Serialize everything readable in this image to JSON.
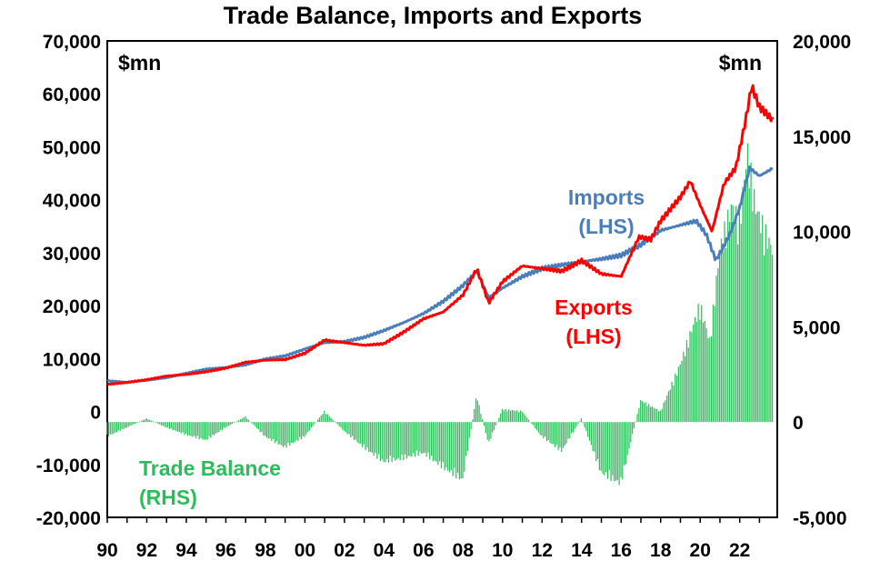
{
  "chart_data": {
    "type": "bar+line",
    "title": "Trade Balance, Imports and Exports",
    "left_unit": "$mn",
    "right_unit": "$mn",
    "x_tick_labels": [
      "90",
      "92",
      "94",
      "96",
      "98",
      "00",
      "02",
      "04",
      "06",
      "08",
      "10",
      "12",
      "14",
      "16",
      "18",
      "20",
      "22"
    ],
    "x_range": [
      1990,
      2023.9
    ],
    "left_axis": {
      "ylim": [
        -20000,
        70000
      ],
      "ticks": [
        -20000,
        -10000,
        0,
        10000,
        20000,
        30000,
        40000,
        50000,
        60000,
        70000
      ],
      "tick_labels": [
        "-20,000",
        "-10,000",
        "0",
        "10,000",
        "20,000",
        "30,000",
        "40,000",
        "50,000",
        "60,000",
        "70,000"
      ]
    },
    "right_axis": {
      "ylim": [
        -5000,
        20000
      ],
      "ticks": [
        -5000,
        0,
        5000,
        10000,
        15000,
        20000
      ],
      "tick_labels": [
        "-5,000",
        "0",
        "5,000",
        "10,000",
        "15,000",
        "20,000"
      ]
    },
    "grid": false,
    "colors": {
      "imports": "#4a7ebb",
      "exports": "#ff0000",
      "balance": "#2bbd5a"
    },
    "series": [
      {
        "name": "Imports",
        "label_lines": [
          "Imports",
          "(LHS)"
        ],
        "axis": "left",
        "kind": "line",
        "points": [
          [
            1990,
            5800
          ],
          [
            1991,
            5500
          ],
          [
            1992,
            5900
          ],
          [
            1993,
            6400
          ],
          [
            1994,
            7200
          ],
          [
            1995,
            8000
          ],
          [
            1996,
            8300
          ],
          [
            1997,
            8800
          ],
          [
            1998,
            9900
          ],
          [
            1999,
            10500
          ],
          [
            2000,
            11800
          ],
          [
            2001,
            13000
          ],
          [
            2002,
            13200
          ],
          [
            2003,
            14000
          ],
          [
            2004,
            15300
          ],
          [
            2005,
            16800
          ],
          [
            2006,
            18500
          ],
          [
            2007,
            20800
          ],
          [
            2008,
            23800
          ],
          [
            2008.7,
            26500
          ],
          [
            2009.3,
            21500
          ],
          [
            2010,
            23300
          ],
          [
            2011,
            25500
          ],
          [
            2012,
            27000
          ],
          [
            2013,
            27700
          ],
          [
            2014,
            28300
          ],
          [
            2015,
            28800
          ],
          [
            2016,
            29500
          ],
          [
            2017,
            31500
          ],
          [
            2018,
            34200
          ],
          [
            2019,
            35200
          ],
          [
            2019.8,
            36000
          ],
          [
            2020.3,
            33500
          ],
          [
            2020.8,
            28500
          ],
          [
            2021.5,
            33500
          ],
          [
            2022,
            38500
          ],
          [
            2022.5,
            46000
          ],
          [
            2023,
            44500
          ],
          [
            2023.7,
            46000
          ]
        ]
      },
      {
        "name": "Exports",
        "label_lines": [
          "Exports",
          "(LHS)"
        ],
        "axis": "left",
        "kind": "line",
        "points": [
          [
            1990,
            5100
          ],
          [
            1991,
            5500
          ],
          [
            1992,
            6000
          ],
          [
            1993,
            6700
          ],
          [
            1994,
            7000
          ],
          [
            1995,
            7500
          ],
          [
            1996,
            8200
          ],
          [
            1997,
            9300
          ],
          [
            1998,
            9700
          ],
          [
            1999,
            9800
          ],
          [
            2000,
            11000
          ],
          [
            2001,
            13500
          ],
          [
            2002,
            13000
          ],
          [
            2003,
            12500
          ],
          [
            2004,
            12800
          ],
          [
            2005,
            15000
          ],
          [
            2006,
            17500
          ],
          [
            2007,
            18800
          ],
          [
            2008,
            22000
          ],
          [
            2008.7,
            27000
          ],
          [
            2009.3,
            20500
          ],
          [
            2010,
            24500
          ],
          [
            2011,
            27500
          ],
          [
            2012,
            27000
          ],
          [
            2013,
            26500
          ],
          [
            2014,
            28500
          ],
          [
            2015,
            26000
          ],
          [
            2016,
            25500
          ],
          [
            2016.9,
            33000
          ],
          [
            2017.5,
            32500
          ],
          [
            2018,
            36000
          ],
          [
            2019,
            40500
          ],
          [
            2019.5,
            43500
          ],
          [
            2020,
            39000
          ],
          [
            2020.6,
            34000
          ],
          [
            2021.2,
            43000
          ],
          [
            2021.8,
            46000
          ],
          [
            2022.3,
            55000
          ],
          [
            2022.6,
            61500
          ],
          [
            2023,
            57500
          ],
          [
            2023.7,
            55000
          ]
        ]
      },
      {
        "name": "Trade Balance",
        "label_lines": [
          "Trade Balance",
          "(RHS)"
        ],
        "axis": "right",
        "kind": "bar",
        "points": [
          [
            1990,
            -800
          ],
          [
            1991,
            -300
          ],
          [
            1992,
            200
          ],
          [
            1993,
            -300
          ],
          [
            1994,
            -700
          ],
          [
            1995,
            -1000
          ],
          [
            1996,
            -300
          ],
          [
            1997,
            300
          ],
          [
            1998,
            -800
          ],
          [
            1999,
            -1400
          ],
          [
            2000,
            -800
          ],
          [
            2001,
            600
          ],
          [
            2002,
            -500
          ],
          [
            2003,
            -1400
          ],
          [
            2004,
            -2200
          ],
          [
            2005,
            -2000
          ],
          [
            2006,
            -1700
          ],
          [
            2007,
            -2500
          ],
          [
            2008,
            -3200
          ],
          [
            2008.7,
            1500
          ],
          [
            2009.3,
            -1200
          ],
          [
            2010,
            700
          ],
          [
            2011,
            600
          ],
          [
            2012,
            -800
          ],
          [
            2013,
            -1600
          ],
          [
            2014,
            200
          ],
          [
            2015,
            -2800
          ],
          [
            2016,
            -3400
          ],
          [
            2017,
            1200
          ],
          [
            2018,
            600
          ],
          [
            2019,
            3200
          ],
          [
            2020,
            6500
          ],
          [
            2020.5,
            4500
          ],
          [
            2021,
            9500
          ],
          [
            2021.6,
            12000
          ],
          [
            2022,
            11000
          ],
          [
            2022.4,
            15000
          ],
          [
            2022.8,
            12000
          ],
          [
            2023.3,
            10500
          ],
          [
            2023.7,
            9500
          ]
        ]
      }
    ]
  }
}
